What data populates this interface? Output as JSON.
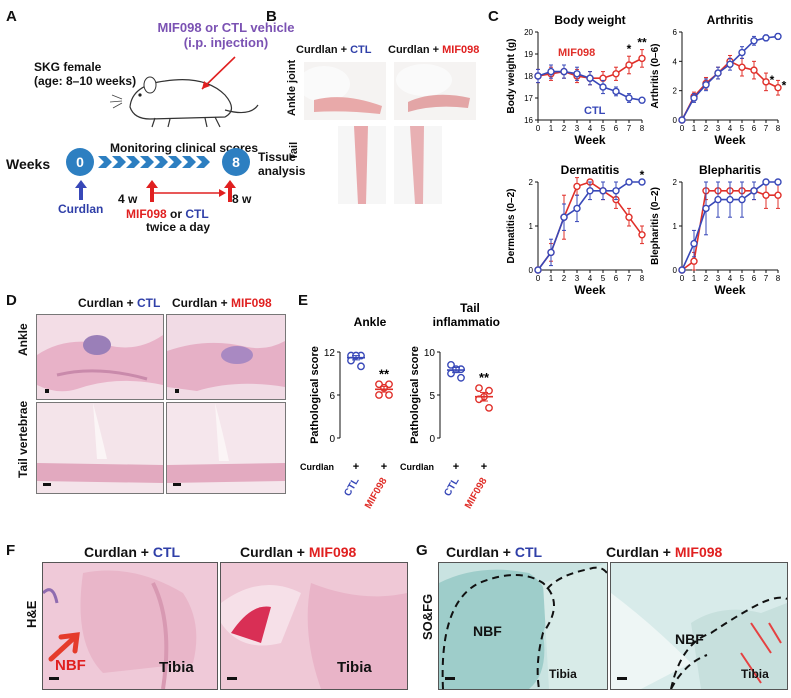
{
  "panel_A": {
    "letter": "A",
    "treatment_line1": "MIF098 or CTL vehicle",
    "treatment_line2": "(i.p. injection)",
    "mouse_line1": "SKG female",
    "mouse_line2": "(age: 8–10 weeks)",
    "monitoring": "Monitoring clinical scores",
    "weeks": "Weeks",
    "week_start": "0",
    "week_end": "8",
    "tissue1": "Tissue",
    "tissue2": "analysis",
    "curdlan": "Curdlan",
    "w4": "4 w",
    "w8": "8 w",
    "treat_mif": "MIF098",
    "treat_or": " or ",
    "treat_ctl": "CTL",
    "twice": "twice a day"
  },
  "panel_B": {
    "letter": "B",
    "col1_prefix": "Curdlan + ",
    "col1_ctl": "CTL",
    "col2_prefix": "Curdlan + ",
    "col2_mif": "MIF098",
    "row1": "Ankle joint",
    "row2": "Tail"
  },
  "panel_C": {
    "letter": "C",
    "xlabel": "Week",
    "legend_mif": "MIF098",
    "legend_ctl": "CTL"
  },
  "panel_D": {
    "letter": "D",
    "col1_prefix": "Curdlan + ",
    "col1_ctl": "CTL",
    "col2_prefix": "Curdlan + ",
    "col2_mif": "MIF098",
    "row1": "Ankle",
    "row2": "Tail vertebrae"
  },
  "panel_E": {
    "letter": "E",
    "curdlan": "Curdlan",
    "plus": "+",
    "ctl": "CTL",
    "mif": "MIF098"
  },
  "panel_F": {
    "letter": "F",
    "col1_prefix": "Curdlan + ",
    "col1_ctl": "CTL",
    "col2_prefix": "Curdlan + ",
    "col2_mif": "MIF098",
    "row": "H&E",
    "nbf": "NBF",
    "tibia": "Tibia"
  },
  "panel_G": {
    "letter": "G",
    "col1_prefix": "Curdlan + ",
    "col1_ctl": "CTL",
    "col2_prefix": "Curdlan + ",
    "col2_mif": "MIF098",
    "row": "SO&FG",
    "nbf": "NBF",
    "tibia": "Tibia"
  },
  "colors": {
    "ctl": "#3848b8",
    "mif": "#e0302a"
  },
  "chart_data": [
    {
      "type": "line",
      "title": "Body weight",
      "xlabel": "Week",
      "ylabel": "Body weight (g)",
      "x": [
        0,
        1,
        2,
        3,
        4,
        5,
        6,
        7,
        8
      ],
      "ylim": [
        16,
        20
      ],
      "yticks": [
        16,
        17,
        18,
        19,
        20
      ],
      "series": [
        {
          "name": "MIF098",
          "values": [
            18.0,
            18.1,
            18.2,
            18.0,
            17.9,
            17.9,
            18.1,
            18.5,
            18.8
          ],
          "err": [
            0.3,
            0.3,
            0.3,
            0.3,
            0.3,
            0.3,
            0.3,
            0.4,
            0.4
          ]
        },
        {
          "name": "CTL",
          "values": [
            18.0,
            18.2,
            18.2,
            18.1,
            17.9,
            17.5,
            17.3,
            17.0,
            16.9
          ],
          "err": [
            0.3,
            0.3,
            0.3,
            0.3,
            0.3,
            0.3,
            0.2,
            0.2,
            0.1
          ]
        }
      ],
      "annotations": [
        {
          "x": 7,
          "text": "*"
        },
        {
          "x": 8,
          "text": "**"
        }
      ]
    },
    {
      "type": "line",
      "title": "Arthritis",
      "xlabel": "Week",
      "ylabel": "Arthritis (0–6)",
      "x": [
        0,
        1,
        2,
        3,
        4,
        5,
        6,
        7,
        8
      ],
      "ylim": [
        0,
        6
      ],
      "yticks": [
        0,
        2,
        4,
        6
      ],
      "series": [
        {
          "name": "MIF098",
          "values": [
            0,
            1.6,
            2.5,
            3.2,
            4.0,
            3.6,
            3.4,
            2.6,
            2.2
          ],
          "err": [
            0,
            0.3,
            0.4,
            0.4,
            0.4,
            0.6,
            0.6,
            0.6,
            0.5
          ]
        },
        {
          "name": "CTL",
          "values": [
            0,
            1.5,
            2.4,
            3.2,
            3.8,
            4.6,
            5.4,
            5.6,
            5.7
          ],
          "err": [
            0,
            0.3,
            0.4,
            0.4,
            0.4,
            0.4,
            0.3,
            0.2,
            0.2
          ]
        }
      ],
      "annotations": [
        {
          "x": 7,
          "text": "*"
        },
        {
          "x": 8,
          "text": "*"
        }
      ]
    },
    {
      "type": "line",
      "title": "Dermatitis",
      "xlabel": "Week",
      "ylabel": "Dermatitis (0–2)",
      "x": [
        0,
        1,
        2,
        3,
        4,
        5,
        6,
        7,
        8
      ],
      "ylim": [
        0,
        2
      ],
      "yticks": [
        0,
        1,
        2
      ],
      "series": [
        {
          "name": "MIF098",
          "values": [
            0,
            0.4,
            1.2,
            1.9,
            2.0,
            1.8,
            1.6,
            1.2,
            0.8
          ],
          "err": [
            0,
            0.2,
            0.5,
            0.2,
            0,
            0.2,
            0.2,
            0.2,
            0.2
          ]
        },
        {
          "name": "CTL",
          "values": [
            0,
            0.4,
            1.2,
            1.4,
            1.8,
            1.8,
            1.8,
            2.0,
            2.0
          ],
          "err": [
            0,
            0.3,
            0.3,
            0.3,
            0.2,
            0.2,
            0.2,
            0,
            0
          ]
        }
      ],
      "annotations": [
        {
          "x": 8,
          "text": "*"
        }
      ]
    },
    {
      "type": "line",
      "title": "Blepharitis",
      "xlabel": "Week",
      "ylabel": "Blepharitis (0–2)",
      "x": [
        0,
        1,
        2,
        3,
        4,
        5,
        6,
        7,
        8
      ],
      "ylim": [
        0,
        2
      ],
      "yticks": [
        0,
        1,
        2
      ],
      "series": [
        {
          "name": "MIF098",
          "values": [
            0,
            0.2,
            1.8,
            1.8,
            1.8,
            1.8,
            1.8,
            1.7,
            1.7
          ],
          "err": [
            0,
            0.2,
            0.2,
            0.2,
            0.2,
            0.2,
            0.2,
            0.3,
            0.3
          ]
        },
        {
          "name": "CTL",
          "values": [
            0,
            0.6,
            1.4,
            1.6,
            1.6,
            1.6,
            1.8,
            2.0,
            2.0
          ],
          "err": [
            0,
            0.3,
            0.6,
            0.4,
            0.4,
            0.4,
            0.2,
            0,
            0
          ]
        }
      ],
      "annotations": []
    },
    {
      "type": "scatter",
      "title": "Ankle",
      "ylabel": "Pathological score",
      "categories": [
        "CTL",
        "MIF098"
      ],
      "ylim": [
        0,
        12
      ],
      "yticks": [
        0,
        6,
        12
      ],
      "series": [
        {
          "name": "CTL",
          "values": [
            11.5,
            11.5,
            11.5,
            10.8,
            10.0
          ],
          "mean": 11.2,
          "sem": 0.3
        },
        {
          "name": "MIF098",
          "values": [
            7.5,
            7.5,
            7.0,
            6.0,
            6.0
          ],
          "mean": 6.8,
          "sem": 0.4
        }
      ],
      "annotations": [
        {
          "category": "MIF098",
          "text": "**"
        }
      ]
    },
    {
      "type": "scatter",
      "title": "Tail inflammation",
      "title_line1": "Tail",
      "title_line2": "inflammation",
      "ylabel": "Pathological score",
      "categories": [
        "CTL",
        "MIF098"
      ],
      "ylim": [
        0,
        10
      ],
      "yticks": [
        0,
        5,
        10
      ],
      "series": [
        {
          "name": "CTL",
          "values": [
            8.5,
            8.0,
            8.0,
            7.5,
            7.0
          ],
          "mean": 7.9,
          "sem": 0.3
        },
        {
          "name": "MIF098",
          "values": [
            5.8,
            5.5,
            4.8,
            4.5,
            3.5
          ],
          "mean": 4.8,
          "sem": 0.5
        }
      ],
      "annotations": [
        {
          "category": "MIF098",
          "text": "**"
        }
      ]
    }
  ]
}
